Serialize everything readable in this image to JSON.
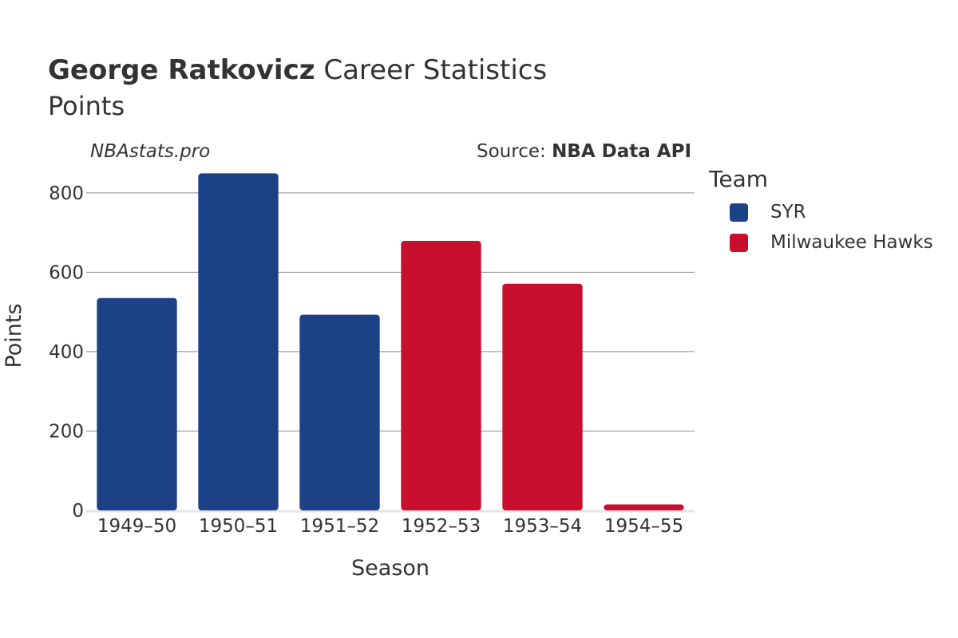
{
  "header": {
    "title_bold": "George Ratkovicz",
    "title_rest": "Career Statistics",
    "subtitle": "Points",
    "watermark": "NBAstats.pro",
    "source_prefix": "Source: ",
    "source_name": "NBA Data API"
  },
  "legend": {
    "title": "Team",
    "items": [
      {
        "label": "SYR",
        "color": "#1c4186"
      },
      {
        "label": "Milwaukee Hawks",
        "color": "#c8102e"
      }
    ]
  },
  "chart_data": {
    "type": "bar",
    "title": "George Ratkovicz Career Statistics",
    "subtitle": "Points",
    "xlabel": "Season",
    "ylabel": "Points",
    "ylim": [
      0,
      880
    ],
    "yticks": [
      0,
      200,
      400,
      600,
      800
    ],
    "grid": true,
    "legend_position": "right",
    "categories": [
      "1949–50",
      "1950–51",
      "1951–52",
      "1952–53",
      "1953–54",
      "1954–55"
    ],
    "values": [
      535,
      849,
      493,
      679,
      571,
      15
    ],
    "teams": [
      "SYR",
      "SYR",
      "SYR",
      "Milwaukee Hawks",
      "Milwaukee Hawks",
      "Milwaukee Hawks"
    ],
    "series": [
      {
        "name": "SYR",
        "values": [
          535,
          849,
          493,
          null,
          null,
          null
        ]
      },
      {
        "name": "Milwaukee Hawks",
        "values": [
          null,
          null,
          null,
          679,
          571,
          15
        ]
      }
    ]
  }
}
